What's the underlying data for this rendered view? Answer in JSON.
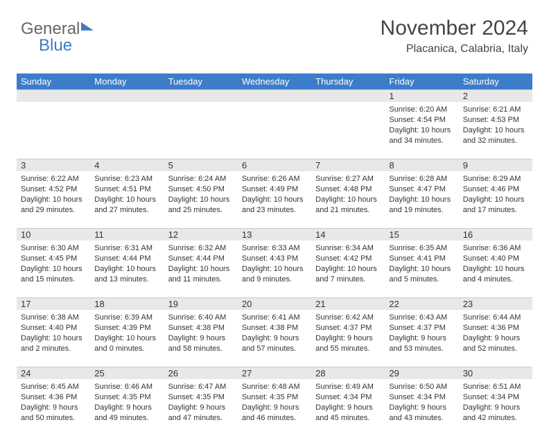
{
  "logo": {
    "part1": "General",
    "part2": "Blue"
  },
  "title": "November 2024",
  "location": "Placanica, Calabria, Italy",
  "colors": {
    "header_bg": "#3d7cc9",
    "header_text": "#ffffff",
    "daynum_bg": "#e8e8e8",
    "text": "#333333",
    "background": "#ffffff"
  },
  "day_names": [
    "Sunday",
    "Monday",
    "Tuesday",
    "Wednesday",
    "Thursday",
    "Friday",
    "Saturday"
  ],
  "weeks": [
    [
      {
        "n": "",
        "sunrise": "",
        "sunset": "",
        "daylight": ""
      },
      {
        "n": "",
        "sunrise": "",
        "sunset": "",
        "daylight": ""
      },
      {
        "n": "",
        "sunrise": "",
        "sunset": "",
        "daylight": ""
      },
      {
        "n": "",
        "sunrise": "",
        "sunset": "",
        "daylight": ""
      },
      {
        "n": "",
        "sunrise": "",
        "sunset": "",
        "daylight": ""
      },
      {
        "n": "1",
        "sunrise": "Sunrise: 6:20 AM",
        "sunset": "Sunset: 4:54 PM",
        "daylight": "Daylight: 10 hours and 34 minutes."
      },
      {
        "n": "2",
        "sunrise": "Sunrise: 6:21 AM",
        "sunset": "Sunset: 4:53 PM",
        "daylight": "Daylight: 10 hours and 32 minutes."
      }
    ],
    [
      {
        "n": "3",
        "sunrise": "Sunrise: 6:22 AM",
        "sunset": "Sunset: 4:52 PM",
        "daylight": "Daylight: 10 hours and 29 minutes."
      },
      {
        "n": "4",
        "sunrise": "Sunrise: 6:23 AM",
        "sunset": "Sunset: 4:51 PM",
        "daylight": "Daylight: 10 hours and 27 minutes."
      },
      {
        "n": "5",
        "sunrise": "Sunrise: 6:24 AM",
        "sunset": "Sunset: 4:50 PM",
        "daylight": "Daylight: 10 hours and 25 minutes."
      },
      {
        "n": "6",
        "sunrise": "Sunrise: 6:26 AM",
        "sunset": "Sunset: 4:49 PM",
        "daylight": "Daylight: 10 hours and 23 minutes."
      },
      {
        "n": "7",
        "sunrise": "Sunrise: 6:27 AM",
        "sunset": "Sunset: 4:48 PM",
        "daylight": "Daylight: 10 hours and 21 minutes."
      },
      {
        "n": "8",
        "sunrise": "Sunrise: 6:28 AM",
        "sunset": "Sunset: 4:47 PM",
        "daylight": "Daylight: 10 hours and 19 minutes."
      },
      {
        "n": "9",
        "sunrise": "Sunrise: 6:29 AM",
        "sunset": "Sunset: 4:46 PM",
        "daylight": "Daylight: 10 hours and 17 minutes."
      }
    ],
    [
      {
        "n": "10",
        "sunrise": "Sunrise: 6:30 AM",
        "sunset": "Sunset: 4:45 PM",
        "daylight": "Daylight: 10 hours and 15 minutes."
      },
      {
        "n": "11",
        "sunrise": "Sunrise: 6:31 AM",
        "sunset": "Sunset: 4:44 PM",
        "daylight": "Daylight: 10 hours and 13 minutes."
      },
      {
        "n": "12",
        "sunrise": "Sunrise: 6:32 AM",
        "sunset": "Sunset: 4:44 PM",
        "daylight": "Daylight: 10 hours and 11 minutes."
      },
      {
        "n": "13",
        "sunrise": "Sunrise: 6:33 AM",
        "sunset": "Sunset: 4:43 PM",
        "daylight": "Daylight: 10 hours and 9 minutes."
      },
      {
        "n": "14",
        "sunrise": "Sunrise: 6:34 AM",
        "sunset": "Sunset: 4:42 PM",
        "daylight": "Daylight: 10 hours and 7 minutes."
      },
      {
        "n": "15",
        "sunrise": "Sunrise: 6:35 AM",
        "sunset": "Sunset: 4:41 PM",
        "daylight": "Daylight: 10 hours and 5 minutes."
      },
      {
        "n": "16",
        "sunrise": "Sunrise: 6:36 AM",
        "sunset": "Sunset: 4:40 PM",
        "daylight": "Daylight: 10 hours and 4 minutes."
      }
    ],
    [
      {
        "n": "17",
        "sunrise": "Sunrise: 6:38 AM",
        "sunset": "Sunset: 4:40 PM",
        "daylight": "Daylight: 10 hours and 2 minutes."
      },
      {
        "n": "18",
        "sunrise": "Sunrise: 6:39 AM",
        "sunset": "Sunset: 4:39 PM",
        "daylight": "Daylight: 10 hours and 0 minutes."
      },
      {
        "n": "19",
        "sunrise": "Sunrise: 6:40 AM",
        "sunset": "Sunset: 4:38 PM",
        "daylight": "Daylight: 9 hours and 58 minutes."
      },
      {
        "n": "20",
        "sunrise": "Sunrise: 6:41 AM",
        "sunset": "Sunset: 4:38 PM",
        "daylight": "Daylight: 9 hours and 57 minutes."
      },
      {
        "n": "21",
        "sunrise": "Sunrise: 6:42 AM",
        "sunset": "Sunset: 4:37 PM",
        "daylight": "Daylight: 9 hours and 55 minutes."
      },
      {
        "n": "22",
        "sunrise": "Sunrise: 6:43 AM",
        "sunset": "Sunset: 4:37 PM",
        "daylight": "Daylight: 9 hours and 53 minutes."
      },
      {
        "n": "23",
        "sunrise": "Sunrise: 6:44 AM",
        "sunset": "Sunset: 4:36 PM",
        "daylight": "Daylight: 9 hours and 52 minutes."
      }
    ],
    [
      {
        "n": "24",
        "sunrise": "Sunrise: 6:45 AM",
        "sunset": "Sunset: 4:36 PM",
        "daylight": "Daylight: 9 hours and 50 minutes."
      },
      {
        "n": "25",
        "sunrise": "Sunrise: 6:46 AM",
        "sunset": "Sunset: 4:35 PM",
        "daylight": "Daylight: 9 hours and 49 minutes."
      },
      {
        "n": "26",
        "sunrise": "Sunrise: 6:47 AM",
        "sunset": "Sunset: 4:35 PM",
        "daylight": "Daylight: 9 hours and 47 minutes."
      },
      {
        "n": "27",
        "sunrise": "Sunrise: 6:48 AM",
        "sunset": "Sunset: 4:35 PM",
        "daylight": "Daylight: 9 hours and 46 minutes."
      },
      {
        "n": "28",
        "sunrise": "Sunrise: 6:49 AM",
        "sunset": "Sunset: 4:34 PM",
        "daylight": "Daylight: 9 hours and 45 minutes."
      },
      {
        "n": "29",
        "sunrise": "Sunrise: 6:50 AM",
        "sunset": "Sunset: 4:34 PM",
        "daylight": "Daylight: 9 hours and 43 minutes."
      },
      {
        "n": "30",
        "sunrise": "Sunrise: 6:51 AM",
        "sunset": "Sunset: 4:34 PM",
        "daylight": "Daylight: 9 hours and 42 minutes."
      }
    ]
  ]
}
